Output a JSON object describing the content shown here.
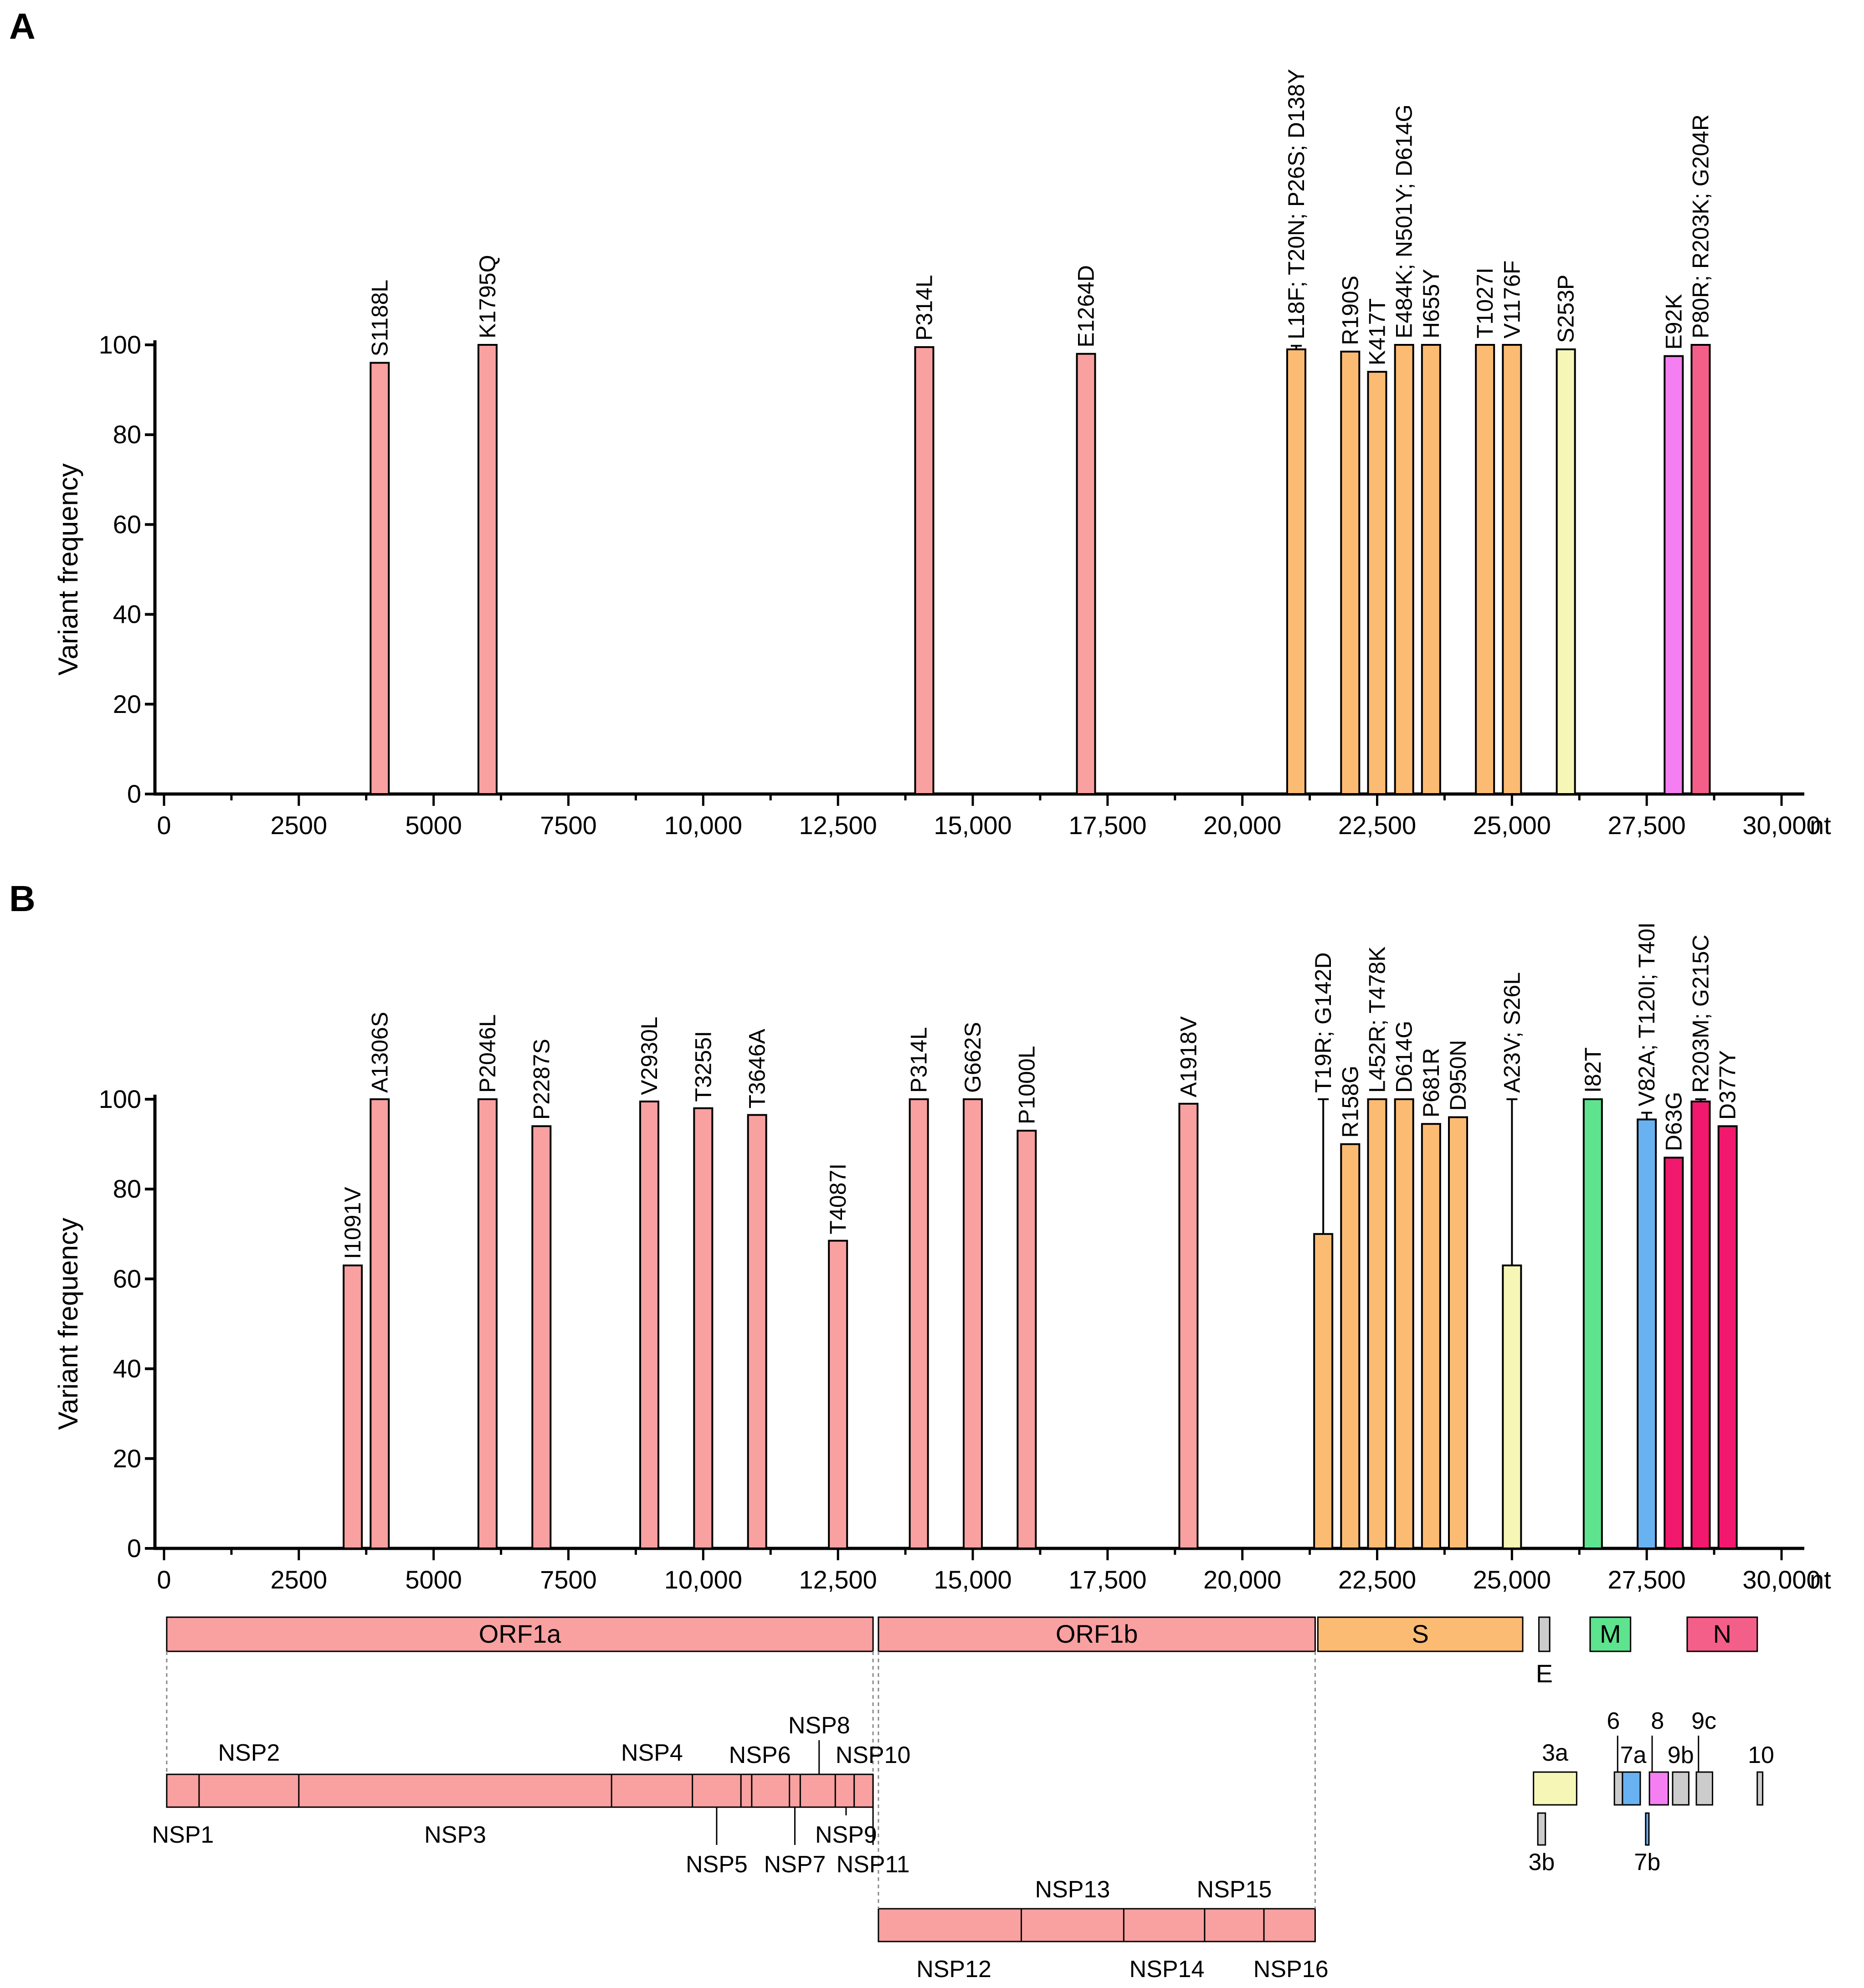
{
  "chart_data": [
    {
      "panel": "A",
      "type": "bar",
      "ylabel": "Variant frequency",
      "xunit": "nt",
      "xlim": [
        0,
        30000
      ],
      "ylim": [
        0,
        100
      ],
      "xticks": [
        "0",
        "2500",
        "5000",
        "7500",
        "10,000",
        "12,500",
        "15,000",
        "17,500",
        "20,000",
        "22,500",
        "25,000",
        "27,500",
        "30,000"
      ],
      "yticks": [
        "0",
        "20",
        "40",
        "60",
        "80",
        "100"
      ],
      "bars": [
        {
          "x": 4000,
          "value": 96,
          "label": "S1188L",
          "color": "#f9a0a0"
        },
        {
          "x": 6000,
          "value": 100,
          "label": "K1795Q",
          "color": "#f9a0a0"
        },
        {
          "x": 14100,
          "value": 99.5,
          "label": "P314L",
          "color": "#f9a0a0"
        },
        {
          "x": 17100,
          "value": 98,
          "label": "E1264D",
          "color": "#f9a0a0"
        },
        {
          "x": 21000,
          "value": 99,
          "label": "L18F; T20N; P26S; D138Y",
          "color": "#fcbb73",
          "err": 0.8
        },
        {
          "x": 22000,
          "value": 98.5,
          "label": "R190S",
          "color": "#fcbb73"
        },
        {
          "x": 22500,
          "value": 94,
          "label": "K417T",
          "color": "#fcbb73"
        },
        {
          "x": 23000,
          "value": 100,
          "label": "E484K; N501Y; D614G",
          "color": "#fcbb73"
        },
        {
          "x": 23500,
          "value": 100,
          "label": "H655Y",
          "color": "#fcbb73"
        },
        {
          "x": 24500,
          "value": 100,
          "label": "T1027I",
          "color": "#fcbb73"
        },
        {
          "x": 25000,
          "value": 100,
          "label": "V1176F",
          "color": "#fcbb73"
        },
        {
          "x": 26000,
          "value": 99,
          "label": "S253P",
          "color": "#f6f7b6"
        },
        {
          "x": 28000,
          "value": 97.5,
          "label": "E92K",
          "color": "#f57ff2"
        },
        {
          "x": 28500,
          "value": 100,
          "label": "P80R; R203K; G204R",
          "color": "#f45f89"
        }
      ]
    },
    {
      "panel": "B",
      "type": "bar",
      "ylabel": "Variant frequency",
      "xunit": "nt",
      "xlim": [
        0,
        30000
      ],
      "ylim": [
        0,
        100
      ],
      "xticks": [
        "0",
        "2500",
        "5000",
        "7500",
        "10,000",
        "12,500",
        "15,000",
        "17,500",
        "20,000",
        "22,500",
        "25,000",
        "27,500",
        "30,000"
      ],
      "yticks": [
        "0",
        "20",
        "40",
        "60",
        "80",
        "100"
      ],
      "bars": [
        {
          "x": 3500,
          "value": 63,
          "label": "I1091V",
          "color": "#f9a0a0"
        },
        {
          "x": 4000,
          "value": 100,
          "label": "A1306S",
          "color": "#f9a0a0"
        },
        {
          "x": 6000,
          "value": 100,
          "label": "P2046L",
          "color": "#f9a0a0"
        },
        {
          "x": 7000,
          "value": 94,
          "label": "P2287S",
          "color": "#f9a0a0"
        },
        {
          "x": 9000,
          "value": 99.5,
          "label": "V2930L",
          "color": "#f9a0a0"
        },
        {
          "x": 10000,
          "value": 98,
          "label": "T3255I",
          "color": "#f9a0a0"
        },
        {
          "x": 11000,
          "value": 96.5,
          "label": "T3646A",
          "color": "#f9a0a0"
        },
        {
          "x": 12500,
          "value": 68.5,
          "label": "T4087I",
          "color": "#f9a0a0"
        },
        {
          "x": 14000,
          "value": 100,
          "label": "P314L",
          "color": "#f9a0a0"
        },
        {
          "x": 15000,
          "value": 100,
          "label": "G662S",
          "color": "#f9a0a0"
        },
        {
          "x": 16000,
          "value": 93,
          "label": "P1000L",
          "color": "#f9a0a0"
        },
        {
          "x": 19000,
          "value": 99,
          "label": "A1918V",
          "color": "#f9a0a0"
        },
        {
          "x": 21500,
          "value": 70,
          "label": "T19R; G142D",
          "color": "#fcbb73",
          "err": 30
        },
        {
          "x": 22000,
          "value": 90,
          "label": "R158G",
          "color": "#fcbb73"
        },
        {
          "x": 22500,
          "value": 100,
          "label": "L452R; T478K",
          "color": "#fcbb73"
        },
        {
          "x": 23000,
          "value": 100,
          "label": "D614G",
          "color": "#fcbb73"
        },
        {
          "x": 23500,
          "value": 94.5,
          "label": "P681R",
          "color": "#fcbb73"
        },
        {
          "x": 24000,
          "value": 96,
          "label": "D950N",
          "color": "#fcbb73"
        },
        {
          "x": 25000,
          "value": 63,
          "label": "A23V; S26L",
          "color": "#f6f7b6",
          "err": 37
        },
        {
          "x": 26500,
          "value": 100,
          "label": "I82T",
          "color": "#5ee38f"
        },
        {
          "x": 27500,
          "value": 95.5,
          "label": "V82A; T120I; T40I",
          "color": "#68b2f2",
          "err": 1.5
        },
        {
          "x": 28000,
          "value": 87,
          "label": "D63G",
          "color": "#f2186d"
        },
        {
          "x": 28500,
          "value": 99.5,
          "label": "R203M; G215C",
          "color": "#f2186d",
          "err": 0.8
        },
        {
          "x": 29000,
          "value": 94,
          "label": "D377Y",
          "color": "#f2186d"
        }
      ]
    }
  ],
  "panels": {
    "a": "A",
    "b": "B"
  },
  "genome_map": {
    "genes": [
      {
        "label": "ORF1a",
        "start": 50,
        "end": 13150,
        "color": "#f9a0a0"
      },
      {
        "label": "ORF1b",
        "start": 13250,
        "end": 21350,
        "color": "#f9a0a0"
      },
      {
        "label": "S",
        "start": 21400,
        "end": 25200,
        "color": "#fcbb73"
      },
      {
        "label": "",
        "start": 25500,
        "end": 25700,
        "color": "#cccccc"
      },
      {
        "label": "M",
        "start": 26450,
        "end": 27200,
        "color": "#5ee38f"
      },
      {
        "label": "N",
        "start": 28250,
        "end": 29550,
        "color": "#f45f89"
      }
    ],
    "gene_e_label": "E",
    "nsp1a_boundaries": [
      650,
      2500,
      8300,
      9800,
      10700,
      10900,
      11600,
      11800,
      12450,
      12800,
      13150
    ],
    "nsp1b_boundaries": [
      15900,
      17800,
      19300,
      20400
    ],
    "nsp_labels": {
      "nsp1": "NSP1",
      "nsp2": "NSP2",
      "nsp3": "NSP3",
      "nsp4": "NSP4",
      "nsp5": "NSP5",
      "nsp6": "NSP6",
      "nsp7": "NSP7",
      "nsp8": "NSP8",
      "nsp9": "NSP9",
      "nsp10": "NSP10",
      "nsp11": "NSP11",
      "nsp12": "NSP12",
      "nsp13": "NSP13",
      "nsp14": "NSP14",
      "nsp15": "NSP15",
      "nsp16": "NSP16"
    },
    "accessory": {
      "a3a": "3a",
      "a3b": "3b",
      "a6": "6",
      "a7a": "7a",
      "a7b": "7b",
      "a8": "8",
      "a9b": "9b",
      "a9c": "9c",
      "a10": "10"
    },
    "accessory_colors": {
      "orf3a": "#f6f7b6",
      "orf7a": "#68b2f2",
      "orf8": "#f57ff2",
      "other": "#cccccc"
    }
  }
}
